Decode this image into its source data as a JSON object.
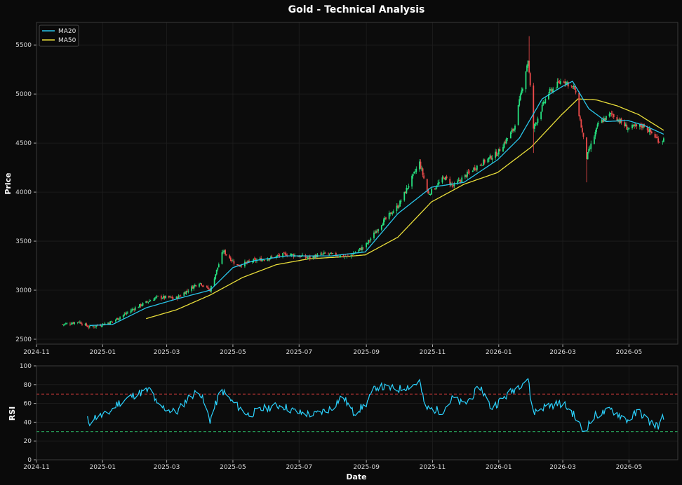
{
  "chart_data": {
    "type": "candlestick",
    "title": "Gold - Technical Analysis",
    "colors": {
      "background": "#0a0a0a",
      "up": "#26e07f",
      "down": "#ef4b4b",
      "ma20": "#29c6ea",
      "ma50": "#e9de3a",
      "rsi": "#2bd3ff",
      "overbought": "#d03a3a",
      "oversold": "#2cc16a",
      "grid": "#1e1e1e",
      "frame": "#3a3a3a"
    },
    "price_panel": {
      "ylabel": "Price",
      "ylim": [
        2450,
        5730
      ],
      "y_ticks": [
        2500,
        3000,
        3500,
        4000,
        4500,
        5000,
        5500
      ],
      "legend_position": "top-left",
      "legend": [
        {
          "name": "MA20",
          "color": "#29c6ea"
        },
        {
          "name": "MA50",
          "color": "#e9de3a"
        }
      ],
      "close_anchors": [
        [
          "2024-11-25",
          2650
        ],
        [
          "2024-12-10",
          2680
        ],
        [
          "2024-12-20",
          2620
        ],
        [
          "2025-01-10",
          2680
        ],
        [
          "2025-01-31",
          2820
        ],
        [
          "2025-02-20",
          2930
        ],
        [
          "2025-03-10",
          2920
        ],
        [
          "2025-03-31",
          3080
        ],
        [
          "2025-04-10",
          3000
        ],
        [
          "2025-04-22",
          3400
        ],
        [
          "2025-05-05",
          3250
        ],
        [
          "2025-05-20",
          3300
        ],
        [
          "2025-06-05",
          3330
        ],
        [
          "2025-06-20",
          3370
        ],
        [
          "2025-07-10",
          3330
        ],
        [
          "2025-07-25",
          3370
        ],
        [
          "2025-08-15",
          3340
        ],
        [
          "2025-08-31",
          3450
        ],
        [
          "2025-09-15",
          3680
        ],
        [
          "2025-10-01",
          3870
        ],
        [
          "2025-10-20",
          4300
        ],
        [
          "2025-10-28",
          3980
        ],
        [
          "2025-11-12",
          4150
        ],
        [
          "2025-11-20",
          4060
        ],
        [
          "2025-12-10",
          4250
        ],
        [
          "2025-12-31",
          4400
        ],
        [
          "2026-01-15",
          4650
        ],
        [
          "2026-01-28",
          5350
        ],
        [
          "2026-02-02",
          4650
        ],
        [
          "2026-02-15",
          5000
        ],
        [
          "2026-03-01",
          5150
        ],
        [
          "2026-03-12",
          5050
        ],
        [
          "2026-03-23",
          4350
        ],
        [
          "2026-04-03",
          4700
        ],
        [
          "2026-04-15",
          4800
        ],
        [
          "2026-04-30",
          4650
        ],
        [
          "2026-05-15",
          4680
        ],
        [
          "2026-05-29",
          4520
        ],
        [
          "2026-06-02",
          4540
        ]
      ],
      "ma20_anchors": [
        [
          "2024-12-20",
          2640
        ],
        [
          "2025-01-10",
          2650
        ],
        [
          "2025-02-10",
          2820
        ],
        [
          "2025-03-10",
          2910
        ],
        [
          "2025-04-10",
          3000
        ],
        [
          "2025-05-01",
          3230
        ],
        [
          "2025-05-20",
          3300
        ],
        [
          "2025-06-20",
          3350
        ],
        [
          "2025-07-31",
          3350
        ],
        [
          "2025-08-31",
          3390
        ],
        [
          "2025-09-30",
          3780
        ],
        [
          "2025-10-31",
          4050
        ],
        [
          "2025-11-30",
          4100
        ],
        [
          "2025-12-31",
          4330
        ],
        [
          "2026-01-20",
          4550
        ],
        [
          "2026-02-10",
          4950
        ],
        [
          "2026-03-01",
          5080
        ],
        [
          "2026-03-10",
          5130
        ],
        [
          "2026-03-25",
          4850
        ],
        [
          "2026-04-10",
          4720
        ],
        [
          "2026-04-30",
          4730
        ],
        [
          "2026-05-15",
          4680
        ],
        [
          "2026-06-02",
          4590
        ]
      ],
      "ma50_anchors": [
        [
          "2025-02-10",
          2710
        ],
        [
          "2025-03-10",
          2800
        ],
        [
          "2025-04-10",
          2950
        ],
        [
          "2025-05-10",
          3130
        ],
        [
          "2025-06-10",
          3260
        ],
        [
          "2025-07-10",
          3320
        ],
        [
          "2025-08-10",
          3340
        ],
        [
          "2025-08-31",
          3360
        ],
        [
          "2025-09-30",
          3540
        ],
        [
          "2025-10-31",
          3900
        ],
        [
          "2025-11-30",
          4080
        ],
        [
          "2025-12-31",
          4200
        ],
        [
          "2026-01-31",
          4460
        ],
        [
          "2026-02-28",
          4790
        ],
        [
          "2026-03-15",
          4950
        ],
        [
          "2026-04-01",
          4940
        ],
        [
          "2026-04-20",
          4880
        ],
        [
          "2026-05-10",
          4790
        ],
        [
          "2026-06-02",
          4630
        ]
      ]
    },
    "rsi_panel": {
      "ylabel": "RSI",
      "ylim": [
        0,
        100
      ],
      "y_ticks": [
        0,
        20,
        40,
        60,
        80,
        100
      ],
      "overbought": 70,
      "oversold": 30,
      "anchors": [
        [
          "2024-12-18",
          45
        ],
        [
          "2024-12-19",
          36
        ],
        [
          "2024-12-23",
          45
        ],
        [
          "2025-01-05",
          48
        ],
        [
          "2025-01-15",
          60
        ],
        [
          "2025-02-01",
          70
        ],
        [
          "2025-02-15",
          75
        ],
        [
          "2025-02-20",
          58
        ],
        [
          "2025-03-10",
          50
        ],
        [
          "2025-03-20",
          65
        ],
        [
          "2025-03-31",
          74
        ],
        [
          "2025-04-10",
          42
        ],
        [
          "2025-04-20",
          75
        ],
        [
          "2025-04-30",
          62
        ],
        [
          "2025-05-15",
          48
        ],
        [
          "2025-05-31",
          55
        ],
        [
          "2025-06-15",
          58
        ],
        [
          "2025-06-30",
          50
        ],
        [
          "2025-07-15",
          48
        ],
        [
          "2025-07-31",
          55
        ],
        [
          "2025-08-10",
          68
        ],
        [
          "2025-08-20",
          50
        ],
        [
          "2025-08-31",
          58
        ],
        [
          "2025-09-10",
          78
        ],
        [
          "2025-09-30",
          75
        ],
        [
          "2025-10-15",
          80
        ],
        [
          "2025-10-20",
          84
        ],
        [
          "2025-10-25",
          55
        ],
        [
          "2025-11-10",
          52
        ],
        [
          "2025-11-20",
          66
        ],
        [
          "2025-11-30",
          58
        ],
        [
          "2025-12-15",
          78
        ],
        [
          "2025-12-25",
          55
        ],
        [
          "2026-01-10",
          70
        ],
        [
          "2026-01-28",
          87
        ],
        [
          "2026-02-01",
          50
        ],
        [
          "2026-02-15",
          58
        ],
        [
          "2026-03-01",
          60
        ],
        [
          "2026-03-10",
          50
        ],
        [
          "2026-03-20",
          30
        ],
        [
          "2026-03-31",
          47
        ],
        [
          "2026-04-15",
          53
        ],
        [
          "2026-04-30",
          42
        ],
        [
          "2026-05-10",
          52
        ],
        [
          "2026-05-20",
          40
        ],
        [
          "2026-05-29",
          36
        ],
        [
          "2026-05-31",
          46
        ],
        [
          "2026-06-02",
          43
        ]
      ]
    },
    "x_axis": {
      "xlabel": "Date",
      "xlim": [
        "2024-11-01",
        "2026-06-15"
      ],
      "start": "2024-11-25",
      "end": "2026-06-02",
      "ticks": [
        {
          "date": "2024-11-01",
          "label": "2024-11"
        },
        {
          "date": "2025-01-01",
          "label": "2025-01"
        },
        {
          "date": "2025-03-01",
          "label": "2025-03"
        },
        {
          "date": "2025-05-01",
          "label": "2025-05"
        },
        {
          "date": "2025-07-01",
          "label": "2025-07"
        },
        {
          "date": "2025-09-01",
          "label": "2025-09"
        },
        {
          "date": "2025-11-01",
          "label": "2025-11"
        },
        {
          "date": "2026-01-01",
          "label": "2026-01"
        },
        {
          "date": "2026-03-01",
          "label": "2026-03"
        },
        {
          "date": "2026-05-01",
          "label": "2026-05"
        }
      ]
    }
  }
}
